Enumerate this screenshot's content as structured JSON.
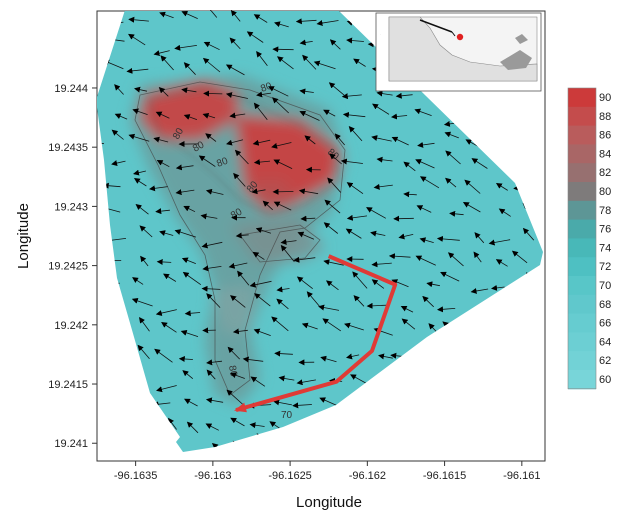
{
  "chart_data": {
    "type": "heatmap",
    "xlabel": "Longitude",
    "ylabel": "Longitude",
    "xlim": [
      -96.16375,
      -96.16085
    ],
    "ylim": [
      19.24085,
      19.24465
    ],
    "x_ticks": [
      "-96.1635",
      "-96.163",
      "-96.1625",
      "-96.162",
      "-96.1615",
      "-96.161"
    ],
    "x_tick_values": [
      -96.1635,
      -96.163,
      -96.1625,
      -96.162,
      -96.1615,
      -96.161
    ],
    "y_ticks": [
      "19.244",
      "19.2435",
      "19.243",
      "19.2425",
      "19.242",
      "19.2415",
      "19.241"
    ],
    "y_tick_values": [
      19.244,
      19.2435,
      19.243,
      19.2425,
      19.242,
      19.2415,
      19.241
    ],
    "colorbar": {
      "min": 60,
      "max": 90,
      "step": 2,
      "ticks": [
        "90",
        "88",
        "86",
        "84",
        "82",
        "80",
        "78",
        "76",
        "74",
        "72",
        "70",
        "68",
        "66",
        "64",
        "62",
        "60"
      ],
      "colors": [
        "#cc3a3a",
        "#c44c4c",
        "#b95c5c",
        "#a96666",
        "#977070",
        "#7e7b7b",
        "#5d9696",
        "#4aaaaa",
        "#48b8b8",
        "#4ec0c2",
        "#58c6c8",
        "#60c8cc",
        "#66ccd0",
        "#6ccfd3",
        "#72d2d6",
        "#78d5d9"
      ]
    },
    "contour_labels": [
      "80",
      "80",
      "80",
      "80",
      "80",
      "80",
      "80",
      "80",
      "70"
    ],
    "track": {
      "color": "#e03a36",
      "lon": [
        -96.16225,
        -96.16182,
        -96.16197,
        -96.1622,
        -96.16285
      ],
      "lat": [
        19.24258,
        19.24234,
        19.24178,
        19.24152,
        19.24128
      ]
    },
    "arrows": "black vector field arrows across survey area",
    "inset_map": true
  }
}
